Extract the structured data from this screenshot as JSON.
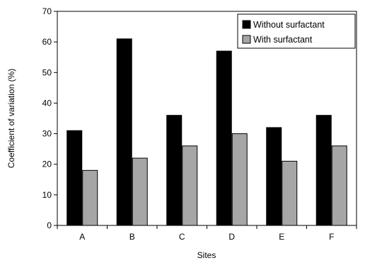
{
  "chart_data": {
    "type": "bar",
    "categories": [
      "A",
      "B",
      "C",
      "D",
      "E",
      "F"
    ],
    "series": [
      {
        "name": "Without surfactant",
        "color": "#000000",
        "values": [
          31,
          61,
          36,
          57,
          32,
          36
        ]
      },
      {
        "name": "With surfactant",
        "color": "#a6a6a6",
        "values": [
          18,
          22,
          26,
          30,
          21,
          26
        ]
      }
    ],
    "xlabel": "Sites",
    "ylabel": "Coefficient of variation (%)",
    "ylim": [
      0,
      70
    ],
    "yticks": [
      "0",
      "10",
      "20",
      "30",
      "40",
      "50",
      "60",
      "70"
    ],
    "grid": false,
    "legend_position": "top-right"
  }
}
